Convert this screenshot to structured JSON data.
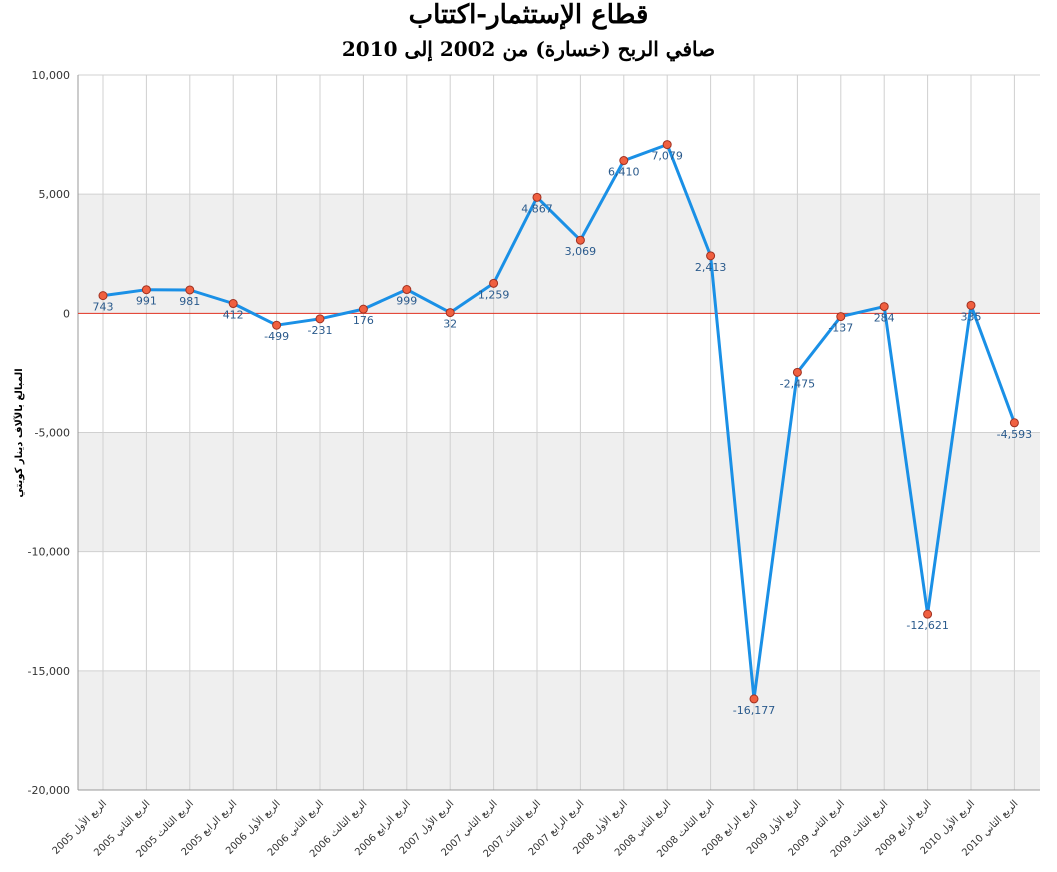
{
  "chart_data": {
    "type": "line",
    "title": "قطاع الإستثمار-اكتتاب",
    "subtitle": "صافي الربح (خسارة) من 2002 إلى 2010",
    "ylabel": "المبالغ بالآلاف دينار كويتي",
    "xlabel": "",
    "ylim": [
      -20000,
      10000
    ],
    "yticks": [
      10000,
      5000,
      0,
      -5000,
      -10000,
      -15000,
      -20000
    ],
    "ytick_labels": [
      "10,000",
      "5,000",
      "0",
      "-5,000",
      "-10,000",
      "-15,000",
      "-20,000"
    ],
    "grid": true,
    "legend": "none",
    "colors": {
      "line": "#1a90e6",
      "marker_fill": "#f06040",
      "marker_stroke": "#a03020",
      "zero_line": "#e03020",
      "band": "#efefef",
      "grid": "#d0d0d0"
    },
    "categories": [
      "الربع الأول 2005",
      "الربع الثاني 2005",
      "الربع الثالث 2005",
      "الربع الرابع 2005",
      "الربع الأول 2006",
      "الربع الثاني 2006",
      "الربع الثالث 2006",
      "الربع الرابع 2006",
      "الربع الأول 2007",
      "الربع الثاني 2007",
      "الربع الثالث 2007",
      "الربع الرابع 2007",
      "الربع الأول 2008",
      "الربع الثاني 2008",
      "الربع الثالث 2008",
      "الربع الرابع 2008",
      "الربع الأول 2009",
      "الربع الثاني 2009",
      "الربع الثالث 2009",
      "الربع الرابع 2009",
      "الربع الأول 2010",
      "الربع الثاني 2010"
    ],
    "values": [
      743,
      991,
      981,
      412,
      -499,
      -231,
      176,
      999,
      32,
      1259,
      4867,
      3069,
      6410,
      7079,
      2413,
      -16177,
      -2475,
      -137,
      284,
      -12621,
      335,
      -4593
    ],
    "value_labels": [
      "743",
      "991",
      "981",
      "412",
      "-499",
      "-231",
      "176",
      "999",
      "32",
      "1,259",
      "4,867",
      "3,069",
      "6,410",
      "7,079",
      "2,413",
      "-16,177",
      "-2,475",
      "-137",
      "284",
      "-12,621",
      "335",
      "-4,593"
    ]
  }
}
